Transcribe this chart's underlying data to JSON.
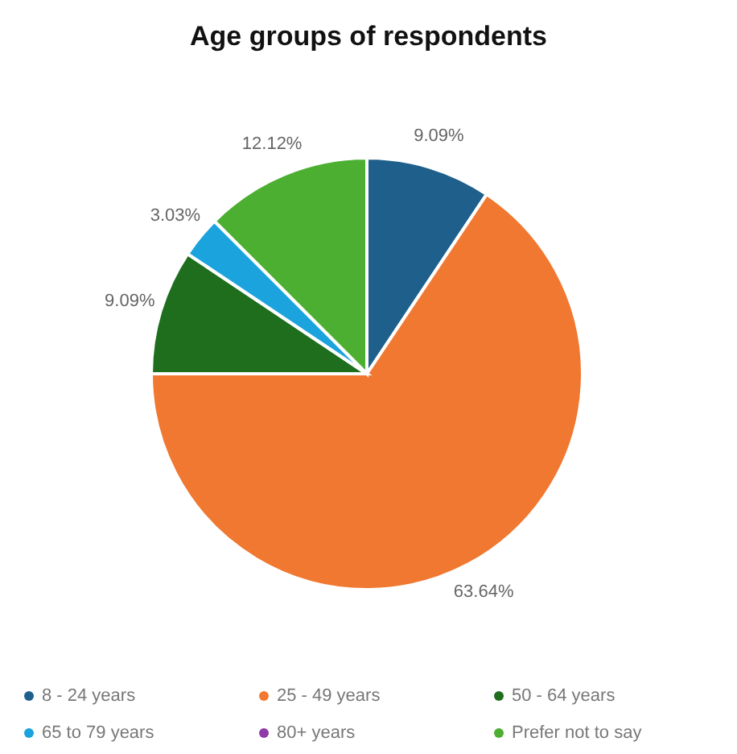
{
  "chart_data": {
    "type": "pie",
    "title": "Age groups of respondents",
    "categories": [
      "8 - 24 years",
      "25 - 49 years",
      "50 - 64 years",
      "65 to 79 years",
      "80+ years",
      "Prefer not to say"
    ],
    "values": [
      9.09,
      63.64,
      9.09,
      3.03,
      0,
      12.12
    ],
    "value_labels": [
      "9.09%",
      "63.64%",
      "9.09%",
      "3.03%",
      null,
      "12.12%"
    ],
    "colors": [
      "#1f5f8b",
      "#f07830",
      "#1e6e1e",
      "#1aa3dc",
      "#8e3aa8",
      "#4caf32"
    ],
    "legend": "bottom"
  }
}
